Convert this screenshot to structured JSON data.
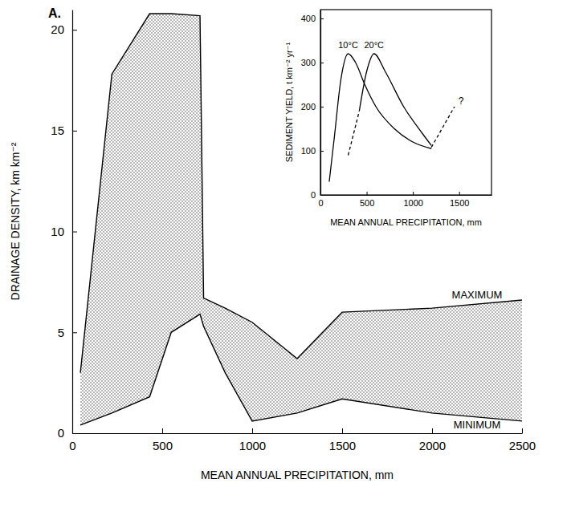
{
  "chart_data": [
    {
      "type": "area",
      "title": "A.",
      "xlabel": "MEAN ANNUAL PRECIPITATION, mm",
      "ylabel": "DRAINAGE DENSITY, km km⁻²",
      "x": [
        45,
        220,
        430,
        550,
        710,
        730,
        850,
        1000,
        1250,
        1500,
        2000,
        2500
      ],
      "series": [
        {
          "name": "MAXIMUM",
          "color": "#000000",
          "values": [
            3.0,
            17.8,
            20.8,
            20.8,
            20.7,
            6.7,
            6.2,
            5.5,
            3.7,
            6.0,
            6.2,
            6.6
          ]
        },
        {
          "name": "MINIMUM",
          "color": "#000000",
          "values": [
            0.4,
            1.0,
            1.8,
            5.0,
            5.9,
            5.3,
            3.0,
            0.6,
            1.0,
            1.7,
            1.0,
            0.6
          ]
        }
      ],
      "xlim": [
        0,
        2500
      ],
      "xticks": [
        0,
        500,
        1000,
        1500,
        2000,
        2500
      ],
      "ylim": [
        0,
        21
      ],
      "yticks": [
        0,
        5,
        10,
        15,
        20
      ]
    },
    {
      "type": "line",
      "xlabel": "MEAN ANNUAL PRECIPITATION, mm",
      "ylabel": "SEDIMENT YIELD, t km⁻² yr⁻¹",
      "series": [
        {
          "name": "10°C",
          "color": "#000000",
          "line_style": "solid",
          "x": [
            95,
            150,
            220,
            300,
            380,
            480,
            600,
            800,
            1000,
            1200
          ],
          "values": [
            30,
            130,
            260,
            320,
            300,
            250,
            200,
            150,
            120,
            105
          ]
        },
        {
          "name": "20°C",
          "color": "#000000",
          "line_style": "solid",
          "x": [
            420,
            500,
            580,
            700,
            900,
            1100,
            1200
          ],
          "values": [
            190,
            280,
            320,
            280,
            200,
            140,
            112
          ]
        },
        {
          "color": "#000000",
          "line_style": "dashed",
          "x": [
            300,
            420
          ],
          "values": [
            90,
            190
          ]
        },
        {
          "color": "#000000",
          "line_style": "dashed",
          "x": [
            1200,
            1450
          ],
          "values": [
            108,
            200
          ]
        }
      ],
      "annotations": [
        {
          "text": "?",
          "x": 1520,
          "y": 205
        }
      ],
      "xlim": [
        0,
        1850
      ],
      "xticks": [
        0,
        500,
        1000,
        1500
      ],
      "ylim": [
        0,
        420
      ],
      "yticks": [
        0,
        100,
        200,
        300,
        400
      ]
    }
  ]
}
